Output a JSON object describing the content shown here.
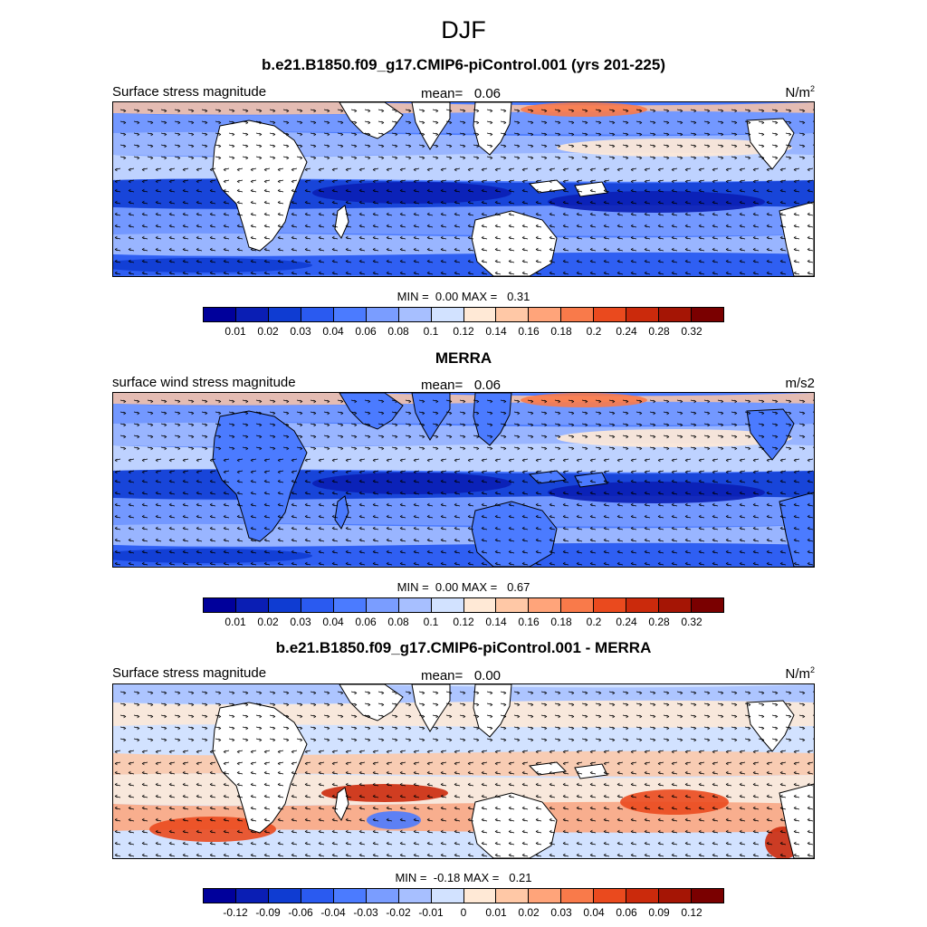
{
  "figure": {
    "title": "DJF"
  },
  "panels": [
    {
      "title": "b.e21.B1850.f09_g17.CMIP6-piControl.001 (yrs 201-225)",
      "left_label": "Surface stress magnitude",
      "mean_label": "mean=",
      "mean_value": "0.06",
      "units": "N/m",
      "units_sup": "2",
      "min_label": "MIN =",
      "min_value": "0.00",
      "max_label": "MAX =",
      "max_value": "0.31",
      "kind": "abs"
    },
    {
      "title": "MERRA",
      "left_label": "surface wind stress magnitude",
      "mean_label": "mean=",
      "mean_value": "0.06",
      "units": "m/s2",
      "units_sup": "",
      "min_label": "MIN =",
      "min_value": "0.00",
      "max_label": "MAX =",
      "max_value": "0.67",
      "kind": "abs"
    },
    {
      "title": "b.e21.B1850.f09_g17.CMIP6-piControl.001 - MERRA",
      "left_label": "Surface stress magnitude",
      "mean_label": "mean=",
      "mean_value": "0.00",
      "units": "N/m",
      "units_sup": "2",
      "min_label": "MIN =",
      "min_value": "-0.18",
      "max_label": "MAX =",
      "max_value": "0.21",
      "kind": "diff"
    }
  ],
  "chart_data": [
    {
      "type": "heatmap",
      "title": "b.e21.B1850.f09_g17.CMIP6-piControl.001 (yrs 201-225)",
      "variable": "Surface stress magnitude",
      "units": "N/m2",
      "mean": 0.06,
      "min": 0.0,
      "max": 0.31,
      "colorbar_levels": [
        "0.01",
        "0.02",
        "0.03",
        "0.04",
        "0.06",
        "0.08",
        "0.1",
        "0.12",
        "0.14",
        "0.16",
        "0.18",
        "0.2",
        "0.24",
        "0.28",
        "0.32"
      ],
      "colors": [
        "#00009b",
        "#0a1eb4",
        "#0f3cd2",
        "#2a5af0",
        "#4b7bff",
        "#7a9dff",
        "#a7bfff",
        "#d2e2ff",
        "#ffe9d6",
        "#ffc8a6",
        "#ffa47a",
        "#f97a4a",
        "#ea4a1e",
        "#cb2a0c",
        "#a51505",
        "#7a0000"
      ]
    },
    {
      "type": "heatmap",
      "title": "MERRA",
      "variable": "surface wind stress magnitude",
      "units": "m/s2",
      "mean": 0.06,
      "min": 0.0,
      "max": 0.67,
      "colorbar_levels": [
        "0.01",
        "0.02",
        "0.03",
        "0.04",
        "0.06",
        "0.08",
        "0.1",
        "0.12",
        "0.14",
        "0.16",
        "0.18",
        "0.2",
        "0.24",
        "0.28",
        "0.32"
      ],
      "colors": [
        "#00009b",
        "#0a1eb4",
        "#0f3cd2",
        "#2a5af0",
        "#4b7bff",
        "#7a9dff",
        "#a7bfff",
        "#d2e2ff",
        "#ffe9d6",
        "#ffc8a6",
        "#ffa47a",
        "#f97a4a",
        "#ea4a1e",
        "#cb2a0c",
        "#a51505",
        "#7a0000"
      ]
    },
    {
      "type": "heatmap",
      "title": "b.e21.B1850.f09_g17.CMIP6-piControl.001 - MERRA",
      "variable": "Surface stress magnitude",
      "units": "N/m2",
      "mean": 0.0,
      "min": -0.18,
      "max": 0.21,
      "colorbar_levels": [
        "-0.12",
        "-0.09",
        "-0.06",
        "-0.04",
        "-0.03",
        "-0.02",
        "-0.01",
        "0",
        "0.01",
        "0.02",
        "0.03",
        "0.04",
        "0.06",
        "0.09",
        "0.12"
      ],
      "colors": [
        "#00009b",
        "#0a1eb4",
        "#0f3cd2",
        "#2a5af0",
        "#4b7bff",
        "#7a9dff",
        "#a7bfff",
        "#d2e2ff",
        "#ffe9d6",
        "#ffc8a6",
        "#ffa47a",
        "#f97a4a",
        "#ea4a1e",
        "#cb2a0c",
        "#a51505",
        "#7a0000"
      ]
    }
  ]
}
